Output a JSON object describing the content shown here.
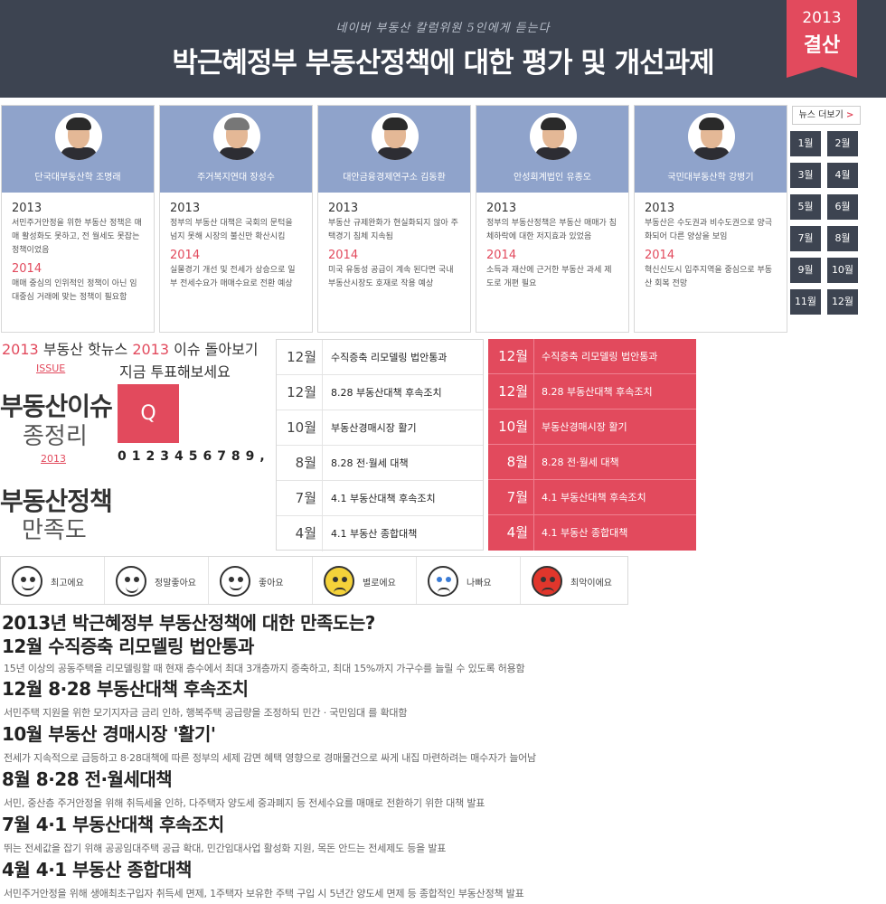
{
  "header": {
    "subtitle": "네이버 부동산 칼럼위원 5인에게 듣는다",
    "title": "박근혜정부 부동산정책에 대한 평가 및 개선과제",
    "badge_year": "2013",
    "badge_label": "결산"
  },
  "experts": [
    {
      "name": "단국대부동산학 조명래",
      "y1": "2013",
      "t1": "서민주거안정을 위한 부동산 정책은 매매 활성화도 못하고, 전 월세도 못잡는 정책이었음",
      "y2": "2014",
      "t2": "매매 중심의 인위적인 정책이 아닌 임대중심 거래에 맞는 정책이 필요함"
    },
    {
      "name": "주거복지연대 장성수",
      "y1": "2013",
      "t1": "정부의 부동산 대책은 국회의 문턱을 넘지 못해 시장의 불신만 확산시킴",
      "y2": "2014",
      "t2": "실물경기 개선 및 전세가 상승으로 일부 전세수요가 매매수요로 전환 예상"
    },
    {
      "name": "대안금융경제연구소 김동환",
      "y1": "2013",
      "t1": "부동산 규제완화가 현실화되지 않아 주택경기 침체 지속됨",
      "y2": "2014",
      "t2": "미국 유동성 공급이 계속 된다면 국내 부동산시장도 호재로 작용 예상"
    },
    {
      "name": "안성회계법인 유종오",
      "y1": "2013",
      "t1": "정부의 부동산정책은 부동산 매매가 침체하락에 대한 저지효과 있었음",
      "y2": "2014",
      "t2": "소득과 재산에 근거한 부동산 과세 제도로 개편 필요"
    },
    {
      "name": "국민대부동산학 강병기",
      "y1": "2013",
      "t1": "부동산은 수도권과 비수도권으로 양극화되어 다른 양상을 보임",
      "y2": "2014",
      "t2": "혁신신도시 입주지역을 중심으로 부동산 회복 전망"
    }
  ],
  "news_more": {
    "label": "뉴스 더보기",
    "arrow": ">"
  },
  "months": [
    "1월",
    "2월",
    "3월",
    "4월",
    "5월",
    "6월",
    "7월",
    "8월",
    "9월",
    "10월",
    "11월",
    "12월"
  ],
  "hotnews": {
    "y1": "2013",
    "t1": "부동산 핫뉴스",
    "y2": "2013",
    "t2": "이슈 돌아보기",
    "vote": "지금 투표해보세요",
    "issue_tag": "ISSUE"
  },
  "left_block": {
    "l1": "부동산이슈",
    "l2": "종정리",
    "year": "2013",
    "l3": "부동산정책",
    "l4": "만족도",
    "q": "Q",
    "digits": "0123456789,"
  },
  "issues": [
    {
      "m": "12월",
      "t": "수직증축 리모델링 법안통과"
    },
    {
      "m": "12월",
      "t": "8.28 부동산대책 후속조치"
    },
    {
      "m": "10월",
      "t": "부동산경매시장 활기"
    },
    {
      "m": "8월",
      "t": "8.28 전·월세 대책"
    },
    {
      "m": "7월",
      "t": "4.1 부동산대책 후속조치"
    },
    {
      "m": "4월",
      "t": "4.1 부동산 종합대책"
    }
  ],
  "emotions": [
    {
      "label": "최고에요",
      "icon": "thumbs-up-face-icon"
    },
    {
      "label": "정말좋아요",
      "icon": "laughing-face-icon"
    },
    {
      "label": "좋아요",
      "icon": "smile-face-icon"
    },
    {
      "label": "별로에요",
      "icon": "sad-face-icon"
    },
    {
      "label": "나빠요",
      "icon": "crying-face-icon"
    },
    {
      "label": "최악이에요",
      "icon": "angry-face-icon"
    }
  ],
  "question": "2013년 박근혜정부 부동산정책에 대한 만족도는?",
  "details": [
    {
      "h": "12월 수직증축 리모델링 법안통과",
      "d": "15년 이상의 공동주택을 리모델링할 때 현재 층수에서 최대 3개층까지 증축하고, 최대 15%까지 가구수를 늘릴 수 있도록 허용함"
    },
    {
      "h": "12월 8·28 부동산대책 후속조치",
      "d": "서민주택 지원을 위한 모기지자금 금리 인하, 행복주택 공급량을 조정하되 민간 · 국민임대 를 확대함"
    },
    {
      "h": "10월 부동산 경매시장 '활기'",
      "d": "전세가 지속적으로 급등하고 8·28대책에 따른 정부의 세제 감면 혜택 영향으로 경매물건으로 싸게 내집 마련하려는 매수자가 늘어남"
    },
    {
      "h": "8월 8·28 전·월세대책",
      "d": "서민, 중산층 주거안정을 위해 취득세율 인하, 다주택자 양도세 중과폐지 등 전세수요를 매매로 전환하기 위한 대책 발표"
    },
    {
      "h": "7월 4·1 부동산대책 후속조치",
      "d": "뛰는 전세값을 잡기 위해 공공임대주택 공급 확대, 민간임대사업 활성화 지원, 목돈 안드는 전세제도 등을 발표"
    },
    {
      "h": "4월 4·1 부동산 종합대책",
      "d": "서민주거안정을 위해 생애최초구입자 취득세 면제, 1주택자 보유한 주택 구입 시 5년간 양도세 면제 등 종합적인 부동산정책 발표"
    }
  ]
}
